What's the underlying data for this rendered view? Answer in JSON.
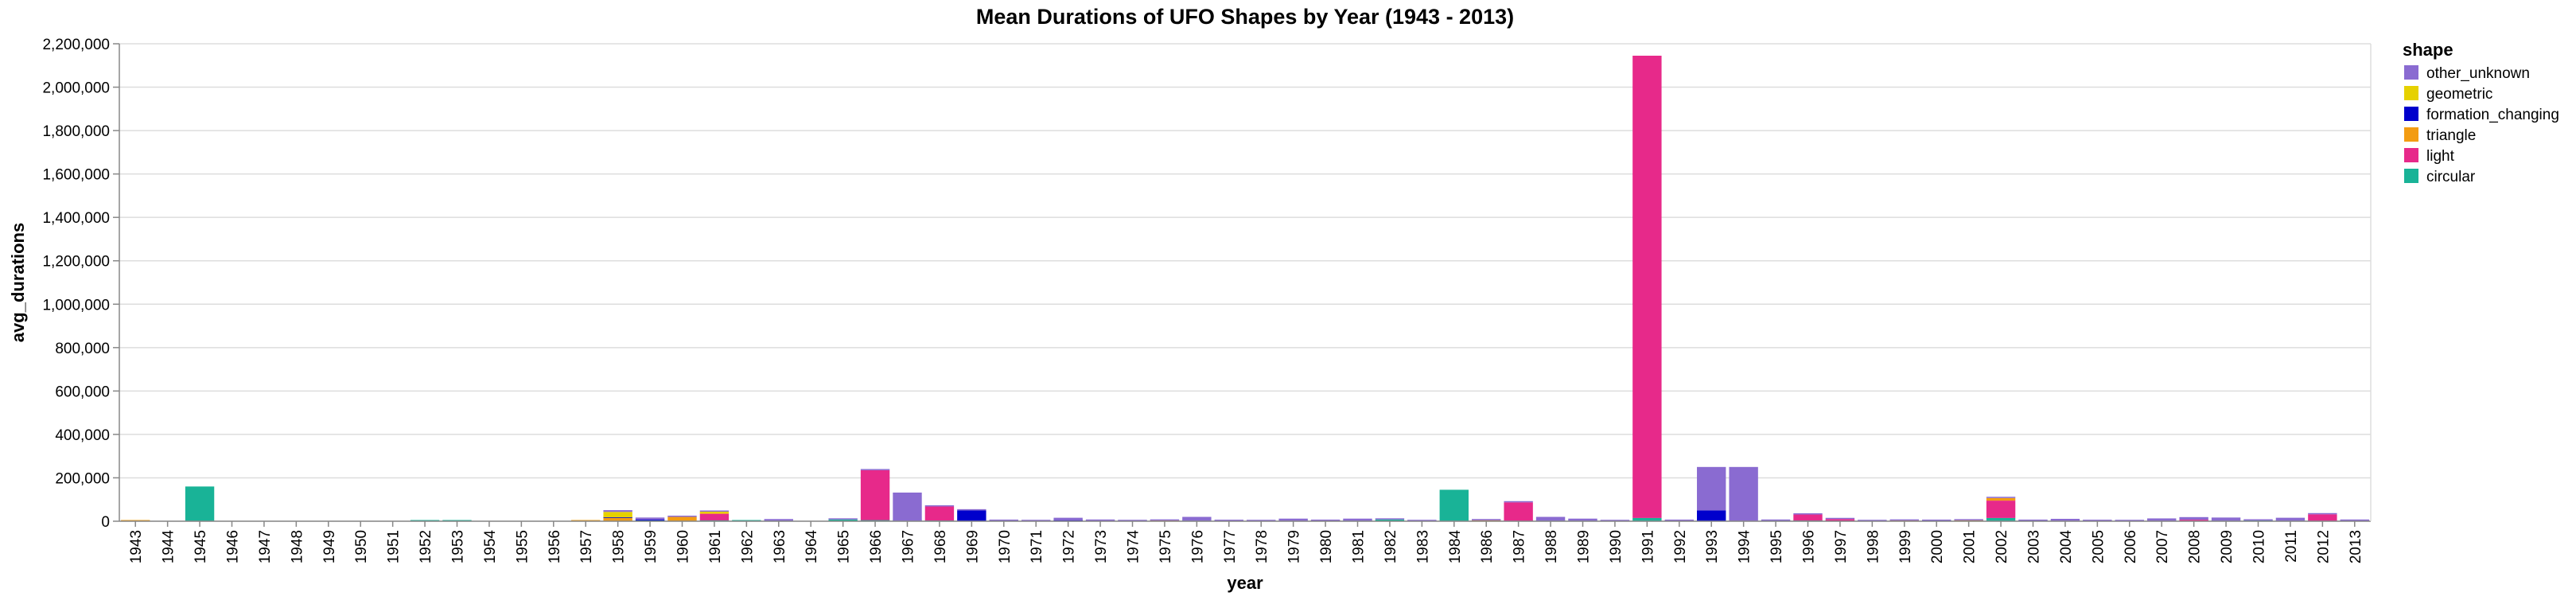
{
  "chart_data": {
    "type": "bar",
    "stacked": true,
    "title": "Mean Durations of UFO Shapes by Year (1943 - 2013)",
    "xlabel": "year",
    "ylabel": "avg_durations",
    "ylim": [
      0,
      2200000
    ],
    "y_ticks": [
      0,
      200000,
      400000,
      600000,
      800000,
      1000000,
      1200000,
      1400000,
      1600000,
      1800000,
      2000000,
      2200000
    ],
    "y_tick_labels": [
      "0",
      "200,000",
      "400,000",
      "600,000",
      "800,000",
      "1,000,000",
      "1,200,000",
      "1,400,000",
      "1,600,000",
      "1,800,000",
      "2,000,000",
      "2,200,000"
    ],
    "grid": true,
    "legend": {
      "title": "shape",
      "position": "right"
    },
    "categories": [
      "1943",
      "1944",
      "1945",
      "1946",
      "1947",
      "1948",
      "1949",
      "1950",
      "1951",
      "1952",
      "1953",
      "1954",
      "1955",
      "1956",
      "1957",
      "1958",
      "1959",
      "1960",
      "1961",
      "1962",
      "1963",
      "1964",
      "1965",
      "1966",
      "1967",
      "1968",
      "1969",
      "1970",
      "1971",
      "1972",
      "1973",
      "1974",
      "1975",
      "1976",
      "1977",
      "1978",
      "1979",
      "1980",
      "1981",
      "1982",
      "1983",
      "1984",
      "1986",
      "1987",
      "1988",
      "1989",
      "1990",
      "1991",
      "1992",
      "1993",
      "1994",
      "1995",
      "1996",
      "1997",
      "1998",
      "1999",
      "2000",
      "2001",
      "2002",
      "2003",
      "2004",
      "2005",
      "2006",
      "2007",
      "2008",
      "2009",
      "2010",
      "2011",
      "2012",
      "2013"
    ],
    "series": [
      {
        "name": "circular",
        "color": "#19b397",
        "values": [
          0,
          0,
          160000,
          0,
          0,
          0,
          0,
          0,
          0,
          2000,
          1000,
          0,
          0,
          0,
          0,
          0,
          3000,
          0,
          4000,
          1000,
          2000,
          0,
          8000,
          5000,
          2000,
          3000,
          0,
          2000,
          1000,
          1000,
          1000,
          1000,
          1000,
          2000,
          1000,
          1000,
          1000,
          1000,
          2000,
          8000,
          1000,
          145000,
          1000,
          2000,
          2000,
          2000,
          1000,
          15000,
          0,
          0,
          0,
          2000,
          3000,
          2000,
          1000,
          1000,
          2000,
          2000,
          15000,
          2000,
          1000,
          1000,
          1000,
          1000,
          1000,
          2000,
          3000,
          2000,
          2000,
          1000
        ]
      },
      {
        "name": "light",
        "color": "#e7298a",
        "values": [
          0,
          0,
          0,
          0,
          0,
          0,
          0,
          0,
          0,
          0,
          0,
          0,
          0,
          0,
          0,
          0,
          0,
          0,
          30000,
          0,
          0,
          0,
          0,
          230000,
          0,
          65000,
          0,
          0,
          0,
          0,
          0,
          0,
          0,
          0,
          0,
          0,
          0,
          0,
          0,
          0,
          0,
          0,
          0,
          85000,
          0,
          0,
          0,
          2130000,
          0,
          0,
          0,
          0,
          28000,
          8000,
          0,
          0,
          0,
          0,
          80000,
          0,
          0,
          0,
          0,
          0,
          6000,
          0,
          0,
          0,
          30000,
          0
        ]
      },
      {
        "name": "triangle",
        "color": "#f39c12",
        "values": [
          1000,
          0,
          0,
          0,
          0,
          0,
          0,
          0,
          0,
          0,
          0,
          0,
          0,
          0,
          2000,
          15000,
          0,
          20000,
          3000,
          0,
          0,
          0,
          0,
          0,
          0,
          0,
          0,
          0,
          0,
          0,
          0,
          0,
          2000,
          0,
          0,
          0,
          0,
          1000,
          0,
          0,
          0,
          0,
          3000,
          0,
          0,
          0,
          0,
          0,
          2000,
          0,
          0,
          0,
          0,
          0,
          0,
          2000,
          0,
          2000,
          12000,
          0,
          0,
          0,
          0,
          0,
          0,
          0,
          0,
          0,
          0,
          0
        ]
      },
      {
        "name": "formation_changing",
        "color": "#0000cc",
        "values": [
          0,
          0,
          0,
          0,
          0,
          0,
          0,
          0,
          0,
          0,
          0,
          0,
          0,
          0,
          0,
          3000,
          4000,
          0,
          0,
          0,
          0,
          0,
          0,
          0,
          0,
          0,
          50000,
          0,
          0,
          3000,
          0,
          0,
          0,
          0,
          0,
          0,
          0,
          0,
          0,
          0,
          0,
          0,
          0,
          0,
          0,
          0,
          0,
          0,
          0,
          50000,
          0,
          0,
          0,
          0,
          0,
          0,
          0,
          0,
          0,
          0,
          0,
          0,
          0,
          0,
          0,
          0,
          0,
          0,
          0,
          0
        ]
      },
      {
        "name": "geometric",
        "color": "#e6d100",
        "values": [
          0,
          0,
          0,
          0,
          0,
          0,
          0,
          0,
          0,
          0,
          0,
          0,
          0,
          0,
          0,
          25000,
          0,
          0,
          7000,
          0,
          0,
          0,
          0,
          0,
          0,
          0,
          0,
          0,
          0,
          0,
          0,
          0,
          0,
          0,
          0,
          0,
          0,
          0,
          0,
          0,
          0,
          0,
          0,
          0,
          0,
          0,
          0,
          0,
          0,
          0,
          0,
          0,
          0,
          0,
          0,
          0,
          0,
          0,
          0,
          0,
          0,
          0,
          0,
          0,
          0,
          0,
          0,
          0,
          0,
          0
        ]
      },
      {
        "name": "other_unknown",
        "color": "#8a6bd1",
        "values": [
          0,
          0,
          0,
          0,
          0,
          0,
          0,
          0,
          0,
          0,
          0,
          0,
          0,
          0,
          0,
          8000,
          10000,
          2000,
          5000,
          0,
          8000,
          0,
          2000,
          4000,
          130000,
          4000,
          4000,
          2000,
          2000,
          12000,
          7000,
          2000,
          4000,
          18000,
          6000,
          5000,
          11000,
          4000,
          10000,
          2000,
          2000,
          0,
          6000,
          3000,
          18000,
          10000,
          3000,
          0,
          3000,
          200000,
          250000,
          6000,
          3000,
          4000,
          3000,
          4000,
          5000,
          5000,
          3000,
          5000,
          10000,
          6000,
          5000,
          12000,
          12000,
          15000,
          6000,
          14000,
          4000,
          7000
        ]
      }
    ]
  }
}
